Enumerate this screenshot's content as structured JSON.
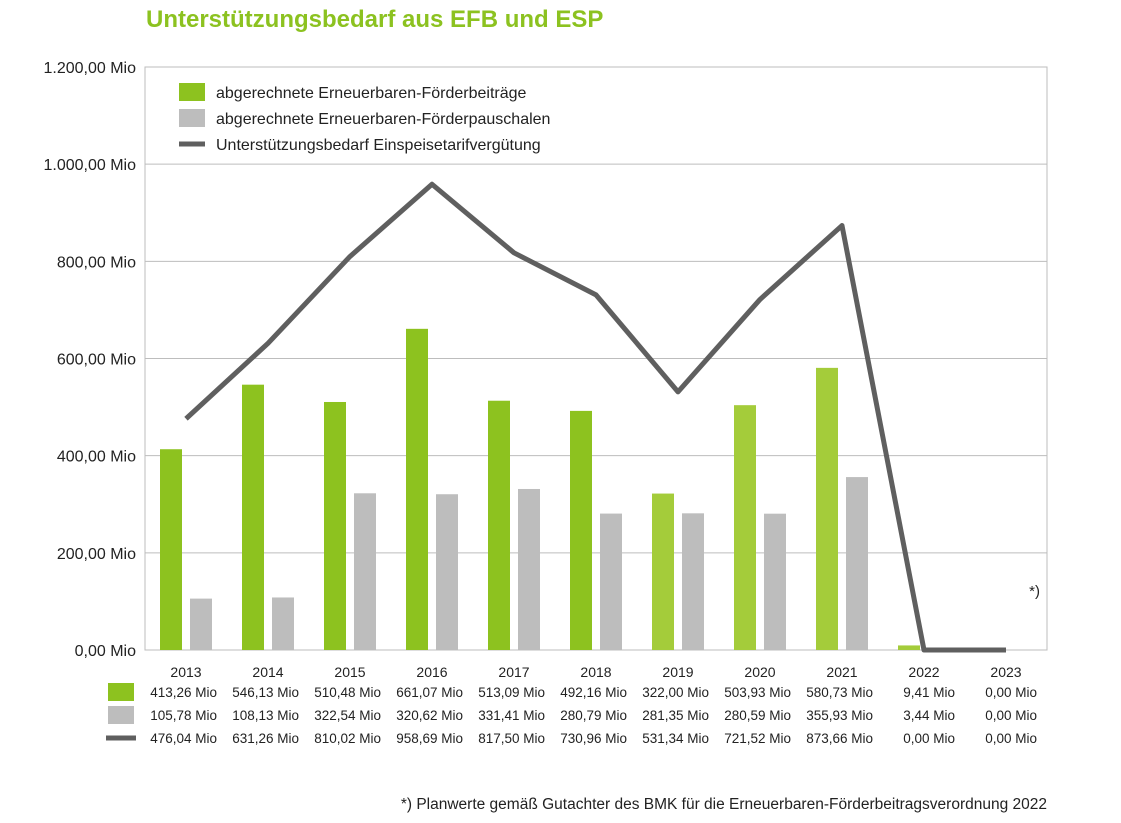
{
  "title": "Unterstützungsbedarf aus EFB und ESP",
  "footnote": "*) Planwerte gemäß Gutachter des BMK für die Erneuerbaren-Förderbeitragsverordnung 2022",
  "plan_marker": "*)",
  "colors": {
    "green": "#8dc21f",
    "green_light": "#a4cc3a",
    "gray_bar": "#bdbdbd",
    "line": "#5f5f5f",
    "grid": "#bdbdbd",
    "title": "#8cc220"
  },
  "chart_data": {
    "type": "bar",
    "title": "Unterstützungsbedarf aus EFB und ESP",
    "xlabel": "",
    "ylabel": "",
    "ylim": [
      0,
      1200
    ],
    "yticks": [
      0,
      200,
      400,
      600,
      800,
      1000,
      1200
    ],
    "ytick_labels": [
      "0,00 Mio",
      "200,00 Mio",
      "400,00 Mio",
      "600,00 Mio",
      "800,00 Mio",
      "1.000,00 Mio",
      "1.200,00 Mio"
    ],
    "grid": true,
    "legend_position": "top-left",
    "categories": [
      "2013",
      "2014",
      "2015",
      "2016",
      "2017",
      "2018",
      "2019",
      "2020",
      "2021",
      "2022",
      "2023"
    ],
    "series": [
      {
        "name": "abgerechnete Erneuerbaren-Förderbeiträge",
        "kind": "bar",
        "color": "#8dc21f",
        "values": [
          413.26,
          546.13,
          510.48,
          661.07,
          513.09,
          492.16,
          322.0,
          503.93,
          580.73,
          9.41,
          0.0
        ],
        "labels": [
          "413,26 Mio",
          "546,13 Mio",
          "510,48 Mio",
          "661,07 Mio",
          "513,09 Mio",
          "492,16 Mio",
          "322,00 Mio",
          "503,93 Mio",
          "580,73 Mio",
          "9,41 Mio",
          "0,00 Mio"
        ]
      },
      {
        "name": "abgerechnete Erneuerbaren-Förderpauschalen",
        "kind": "bar",
        "color": "#bdbdbd",
        "values": [
          105.78,
          108.13,
          322.54,
          320.62,
          331.41,
          280.79,
          281.35,
          280.59,
          355.93,
          3.44,
          0.0
        ],
        "labels": [
          "105,78 Mio",
          "108,13 Mio",
          "322,54 Mio",
          "320,62 Mio",
          "331,41 Mio",
          "280,79 Mio",
          "281,35 Mio",
          "280,59 Mio",
          "355,93 Mio",
          "3,44 Mio",
          "0,00 Mio"
        ]
      },
      {
        "name": "Unterstützungsbedarf Einspeisetarifvergütung",
        "kind": "line",
        "color": "#5f5f5f",
        "values": [
          476.04,
          631.26,
          810.02,
          958.69,
          817.5,
          730.96,
          531.34,
          721.52,
          873.66,
          0.0,
          0.0
        ],
        "labels": [
          "476,04 Mio",
          "631,26 Mio",
          "810,02 Mio",
          "958,69 Mio",
          "817,50 Mio",
          "730,96 Mio",
          "531,34 Mio",
          "721,52 Mio",
          "873,66 Mio",
          "0,00 Mio",
          "0,00 Mio"
        ]
      }
    ]
  }
}
